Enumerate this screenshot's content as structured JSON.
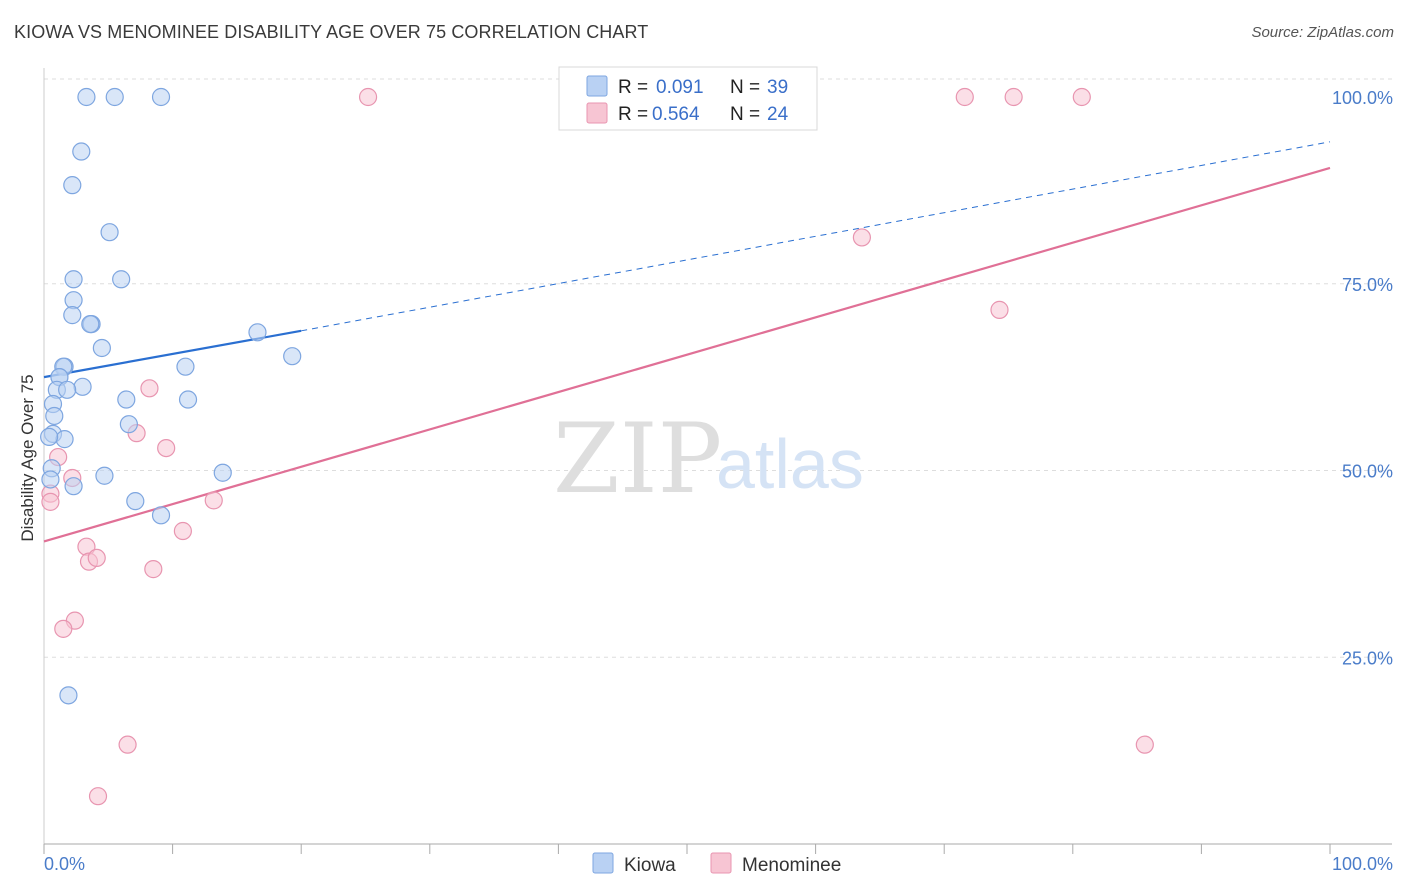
{
  "title": "KIOWA VS MENOMINEE DISABILITY AGE OVER 75 CORRELATION CHART",
  "source": "Source: ZipAtlas.com",
  "watermark": {
    "zip": "ZIP",
    "atlas": "atlas"
  },
  "colors": {
    "kiowa_fill": "#b9d1f3",
    "kiowa_stroke": "#7ea6e0",
    "kiowa_line": "#2a6fd1",
    "menominee_fill": "#f7c5d3",
    "menominee_stroke": "#e895b0",
    "menominee_line": "#e07096",
    "grid": "#dddddd",
    "tick_text": "#4a7cc9"
  },
  "legend": {
    "rows": [
      {
        "r_label": "R =",
        "r_value": "0.091",
        "n_label": "N =",
        "n_value": "39"
      },
      {
        "r_label": "R =",
        "r_value": "0.564",
        "n_label": "N =",
        "n_value": "24"
      }
    ]
  },
  "chart_data": {
    "type": "scatter",
    "title": "KIOWA VS MENOMINEE DISABILITY AGE OVER 75 CORRELATION CHART",
    "xlabel": "",
    "ylabel": "Disability Age Over 75",
    "xlim": [
      0,
      100
    ],
    "ylim": [
      0,
      100
    ],
    "x_tick_labels": [
      "0.0%",
      "100.0%"
    ],
    "y_ticks": [
      25,
      50,
      75,
      100
    ],
    "y_tick_labels": [
      "25.0%",
      "50.0%",
      "75.0%",
      "100.0%"
    ],
    "grid": true,
    "legend_position": "top-center",
    "series": [
      {
        "name": "Kiowa",
        "x": [
          3.3,
          5.5,
          9.1,
          2.9,
          2.2,
          5.1,
          2.3,
          6.0,
          2.3,
          2.2,
          3.7,
          3.6,
          4.5,
          1.6,
          1.5,
          1.2,
          1.2,
          1.0,
          3.0,
          1.8,
          6.4,
          0.7,
          11.0,
          0.8,
          0.7,
          11.2,
          1.6,
          6.6,
          0.4,
          0.6,
          4.7,
          13.9,
          0.5,
          2.3,
          7.1,
          9.1,
          1.9,
          16.6,
          19.3
        ],
        "y": [
          100.0,
          100.0,
          100.0,
          92.7,
          88.2,
          81.9,
          75.6,
          75.6,
          72.8,
          70.8,
          69.6,
          69.6,
          66.4,
          63.9,
          63.9,
          62.5,
          62.5,
          60.8,
          61.2,
          60.8,
          59.5,
          58.9,
          63.9,
          57.3,
          54.9,
          59.5,
          54.2,
          56.2,
          54.5,
          50.3,
          49.3,
          49.7,
          48.8,
          47.9,
          45.9,
          44.0,
          19.9,
          68.5,
          65.3
        ]
      },
      {
        "name": "Menominee",
        "x": [
          25.2,
          71.6,
          75.4,
          80.7,
          63.6,
          74.3,
          8.2,
          7.2,
          9.5,
          1.1,
          2.2,
          0.5,
          0.5,
          13.2,
          3.3,
          3.5,
          4.1,
          8.5,
          2.4,
          1.5,
          6.5,
          85.6,
          4.2,
          10.8
        ],
        "y": [
          100.0,
          100.0,
          100.0,
          100.0,
          81.2,
          71.5,
          61.0,
          55.0,
          53.0,
          51.8,
          49.0,
          46.9,
          45.8,
          46.0,
          39.8,
          37.8,
          38.3,
          36.8,
          29.9,
          28.8,
          13.3,
          13.3,
          6.4,
          41.9
        ]
      }
    ],
    "trend_lines": [
      {
        "name": "Kiowa",
        "x": [
          0,
          20
        ],
        "y": [
          62.5,
          68.7
        ],
        "dashed_extension": {
          "x": [
            20,
            100
          ],
          "y": [
            68.7,
            94.0
          ]
        }
      },
      {
        "name": "Menominee",
        "x": [
          0,
          100
        ],
        "y": [
          40.5,
          90.5
        ]
      }
    ]
  },
  "bottom_legend": {
    "items": [
      {
        "label": "Kiowa"
      },
      {
        "label": "Menominee"
      }
    ]
  }
}
